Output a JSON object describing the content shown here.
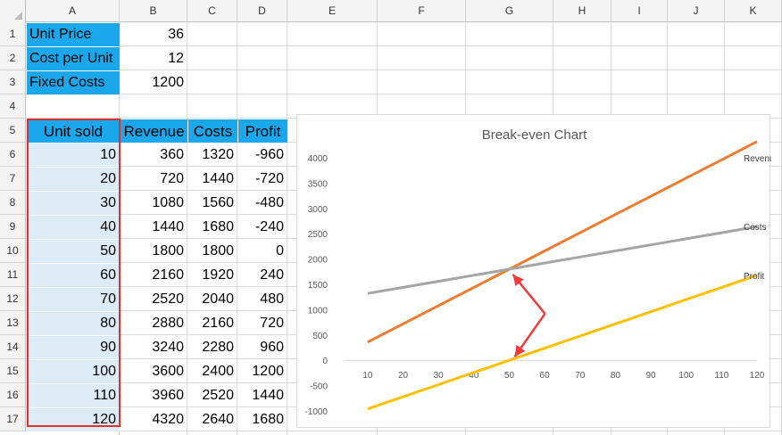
{
  "columns": [
    "A",
    "B",
    "C",
    "D",
    "E",
    "F",
    "G",
    "H",
    "I",
    "J",
    "K"
  ],
  "rows": [
    "1",
    "2",
    "3",
    "4",
    "5",
    "6",
    "7",
    "8",
    "9",
    "10",
    "11",
    "12",
    "13",
    "14",
    "15",
    "16",
    "17"
  ],
  "params": [
    {
      "label": "Unit Price",
      "value": "36"
    },
    {
      "label": "Cost per Unit",
      "value": "12"
    },
    {
      "label": "Fixed Costs",
      "value": "1200"
    }
  ],
  "table": {
    "headers": [
      "Unit sold",
      "Revenue",
      "Costs",
      "Profit"
    ],
    "rows": [
      [
        "10",
        "360",
        "1320",
        "-960"
      ],
      [
        "20",
        "720",
        "1440",
        "-720"
      ],
      [
        "30",
        "1080",
        "1560",
        "-480"
      ],
      [
        "40",
        "1440",
        "1680",
        "-240"
      ],
      [
        "50",
        "1800",
        "1800",
        "0"
      ],
      [
        "60",
        "2160",
        "1920",
        "240"
      ],
      [
        "70",
        "2520",
        "2040",
        "480"
      ],
      [
        "80",
        "2880",
        "2160",
        "720"
      ],
      [
        "90",
        "3240",
        "2280",
        "960"
      ],
      [
        "100",
        "3600",
        "2400",
        "1200"
      ],
      [
        "110",
        "3960",
        "2520",
        "1440"
      ],
      [
        "120",
        "4320",
        "2640",
        "1680"
      ]
    ]
  },
  "chart_data": {
    "type": "line",
    "title": "Break-even Chart",
    "x": [
      10,
      20,
      30,
      40,
      50,
      60,
      70,
      80,
      90,
      100,
      110,
      120
    ],
    "ylim": [
      -1000,
      4000
    ],
    "yticks": [
      -1000,
      -500,
      0,
      500,
      1000,
      1500,
      2000,
      2500,
      3000,
      3500,
      4000
    ],
    "grid": false,
    "legend": "end-of-line labels",
    "series": [
      {
        "name": "Revenue",
        "color": "#ed7d31",
        "values": [
          360,
          720,
          1080,
          1440,
          1800,
          2160,
          2520,
          2880,
          3240,
          3600,
          3960,
          4320
        ]
      },
      {
        "name": "Costs",
        "color": "#a5a5a5",
        "values": [
          1320,
          1440,
          1560,
          1680,
          1800,
          1920,
          2040,
          2160,
          2280,
          2400,
          2520,
          2640
        ]
      },
      {
        "name": "Profit",
        "color": "#ffc000",
        "values": [
          -960,
          -720,
          -480,
          -240,
          0,
          240,
          480,
          720,
          960,
          1200,
          1440,
          1680
        ]
      }
    ],
    "annotation_arrow_color": "#f23a3a"
  }
}
